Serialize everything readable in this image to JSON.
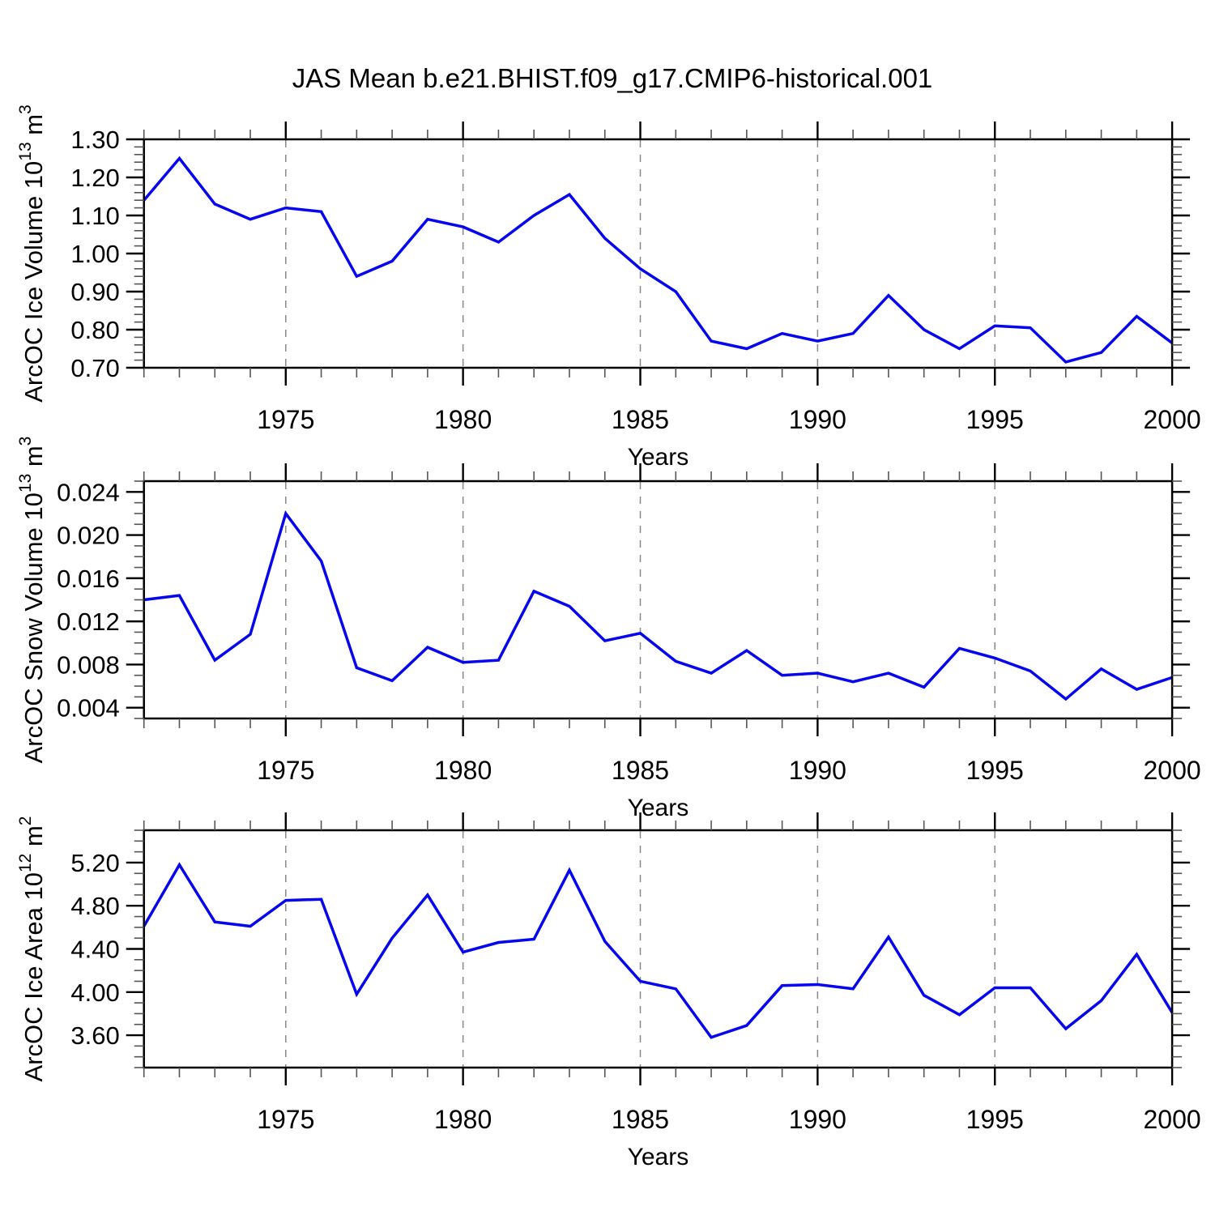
{
  "title": "JAS Mean b.e21.BHIST.f09_g17.CMIP6-historical.001",
  "colors": {
    "line": "#0505f0",
    "axis": "#000000",
    "minor_tick": "#555555",
    "grid": "#888888",
    "background": "#ffffff"
  },
  "chart_data": [
    {
      "type": "line",
      "name": "ice-volume",
      "ylabel": "ArcOC Ice Volume 10^13 m^3",
      "ylabel_rich": [
        {
          "text": "ArcOC Ice Volume 10",
          "sup": false
        },
        {
          "text": "13",
          "sup": true
        },
        {
          "text": " m",
          "sup": false
        },
        {
          "text": "3",
          "sup": true
        }
      ],
      "xlabel": "Years",
      "xlim": [
        1971,
        2000
      ],
      "ylim": [
        0.7,
        1.3
      ],
      "x": [
        1971,
        1972,
        1973,
        1974,
        1975,
        1976,
        1977,
        1978,
        1979,
        1980,
        1981,
        1982,
        1983,
        1984,
        1985,
        1986,
        1987,
        1988,
        1989,
        1990,
        1991,
        1992,
        1993,
        1994,
        1995,
        1996,
        1997,
        1998,
        1999,
        2000
      ],
      "values": [
        1.14,
        1.25,
        1.13,
        1.09,
        1.12,
        1.11,
        0.94,
        0.98,
        1.09,
        1.07,
        1.03,
        1.1,
        1.155,
        1.04,
        0.96,
        0.9,
        0.77,
        0.75,
        0.79,
        0.77,
        0.79,
        0.89,
        0.8,
        0.75,
        0.81,
        0.805,
        0.715,
        0.74,
        0.835,
        0.765
      ],
      "ytick_values": [
        1.3,
        1.2,
        1.1,
        1.0,
        0.9,
        0.8,
        0.7
      ],
      "ytick_labels": [
        "1.30",
        "1.20",
        "1.10",
        "1.00",
        "0.90",
        "0.80",
        "0.70"
      ],
      "yminor_step": 0.02,
      "xticks": [
        1975,
        1980,
        1985,
        1990,
        1995,
        2000
      ],
      "grid_years": [
        1975,
        1980,
        1985,
        1990,
        1995
      ],
      "grid_style": "dashed-vertical",
      "legend": "none"
    },
    {
      "type": "line",
      "name": "snow-volume",
      "ylabel": "ArcOC Snow Volume 10^13 m^3",
      "ylabel_rich": [
        {
          "text": "ArcOC Snow Volume 10",
          "sup": false
        },
        {
          "text": "13",
          "sup": true
        },
        {
          "text": " m",
          "sup": false
        },
        {
          "text": "3",
          "sup": true
        }
      ],
      "xlabel": "Years",
      "xlim": [
        1971,
        2000
      ],
      "ylim": [
        0.003,
        0.025
      ],
      "x": [
        1971,
        1972,
        1973,
        1974,
        1975,
        1976,
        1977,
        1978,
        1979,
        1980,
        1981,
        1982,
        1983,
        1984,
        1985,
        1986,
        1987,
        1988,
        1989,
        1990,
        1991,
        1992,
        1993,
        1994,
        1995,
        1996,
        1997,
        1998,
        1999,
        2000
      ],
      "values": [
        0.014,
        0.0144,
        0.0084,
        0.0108,
        0.022,
        0.0176,
        0.0077,
        0.0065,
        0.0096,
        0.0082,
        0.0084,
        0.0148,
        0.0134,
        0.0102,
        0.0109,
        0.0083,
        0.0072,
        0.0093,
        0.007,
        0.0072,
        0.0064,
        0.0072,
        0.0059,
        0.0095,
        0.0086,
        0.0074,
        0.0048,
        0.0076,
        0.0057,
        0.0068
      ],
      "ytick_values": [
        0.024,
        0.02,
        0.016,
        0.012,
        0.008,
        0.004
      ],
      "ytick_labels": [
        "0.024",
        "0.020",
        "0.016",
        "0.012",
        "0.008",
        "0.004"
      ],
      "yminor_step": 0.001,
      "xticks": [
        1975,
        1980,
        1985,
        1990,
        1995,
        2000
      ],
      "grid_years": [
        1975,
        1980,
        1985,
        1990,
        1995
      ],
      "grid_style": "dashed-vertical",
      "legend": "none"
    },
    {
      "type": "line",
      "name": "ice-area",
      "ylabel": "ArcOC Ice Area 10^12 m^2",
      "ylabel_rich": [
        {
          "text": "ArcOC Ice Area 10",
          "sup": false
        },
        {
          "text": "12",
          "sup": true
        },
        {
          "text": " m",
          "sup": false
        },
        {
          "text": "2",
          "sup": true
        }
      ],
      "xlabel": "Years",
      "xlim": [
        1971,
        2000
      ],
      "ylim": [
        3.3,
        5.5
      ],
      "x": [
        1971,
        1972,
        1973,
        1974,
        1975,
        1976,
        1977,
        1978,
        1979,
        1980,
        1981,
        1982,
        1983,
        1984,
        1985,
        1986,
        1987,
        1988,
        1989,
        1990,
        1991,
        1992,
        1993,
        1994,
        1995,
        1996,
        1997,
        1998,
        1999,
        2000
      ],
      "values": [
        4.61,
        5.18,
        4.65,
        4.61,
        4.85,
        4.86,
        3.98,
        4.5,
        4.9,
        4.37,
        4.46,
        4.49,
        5.13,
        4.47,
        4.1,
        4.03,
        3.58,
        3.69,
        4.06,
        4.07,
        4.03,
        4.51,
        3.97,
        3.79,
        4.04,
        4.04,
        3.66,
        3.92,
        4.35,
        3.81
      ],
      "ytick_values": [
        5.2,
        4.8,
        4.4,
        4.0,
        3.6
      ],
      "ytick_labels": [
        "5.20",
        "4.80",
        "4.40",
        "4.00",
        "3.60"
      ],
      "yminor_step": 0.1,
      "xticks": [
        1975,
        1980,
        1985,
        1990,
        1995,
        2000
      ],
      "grid_years": [
        1975,
        1980,
        1985,
        1990,
        1995
      ],
      "grid_style": "dashed-vertical",
      "legend": "none"
    }
  ]
}
